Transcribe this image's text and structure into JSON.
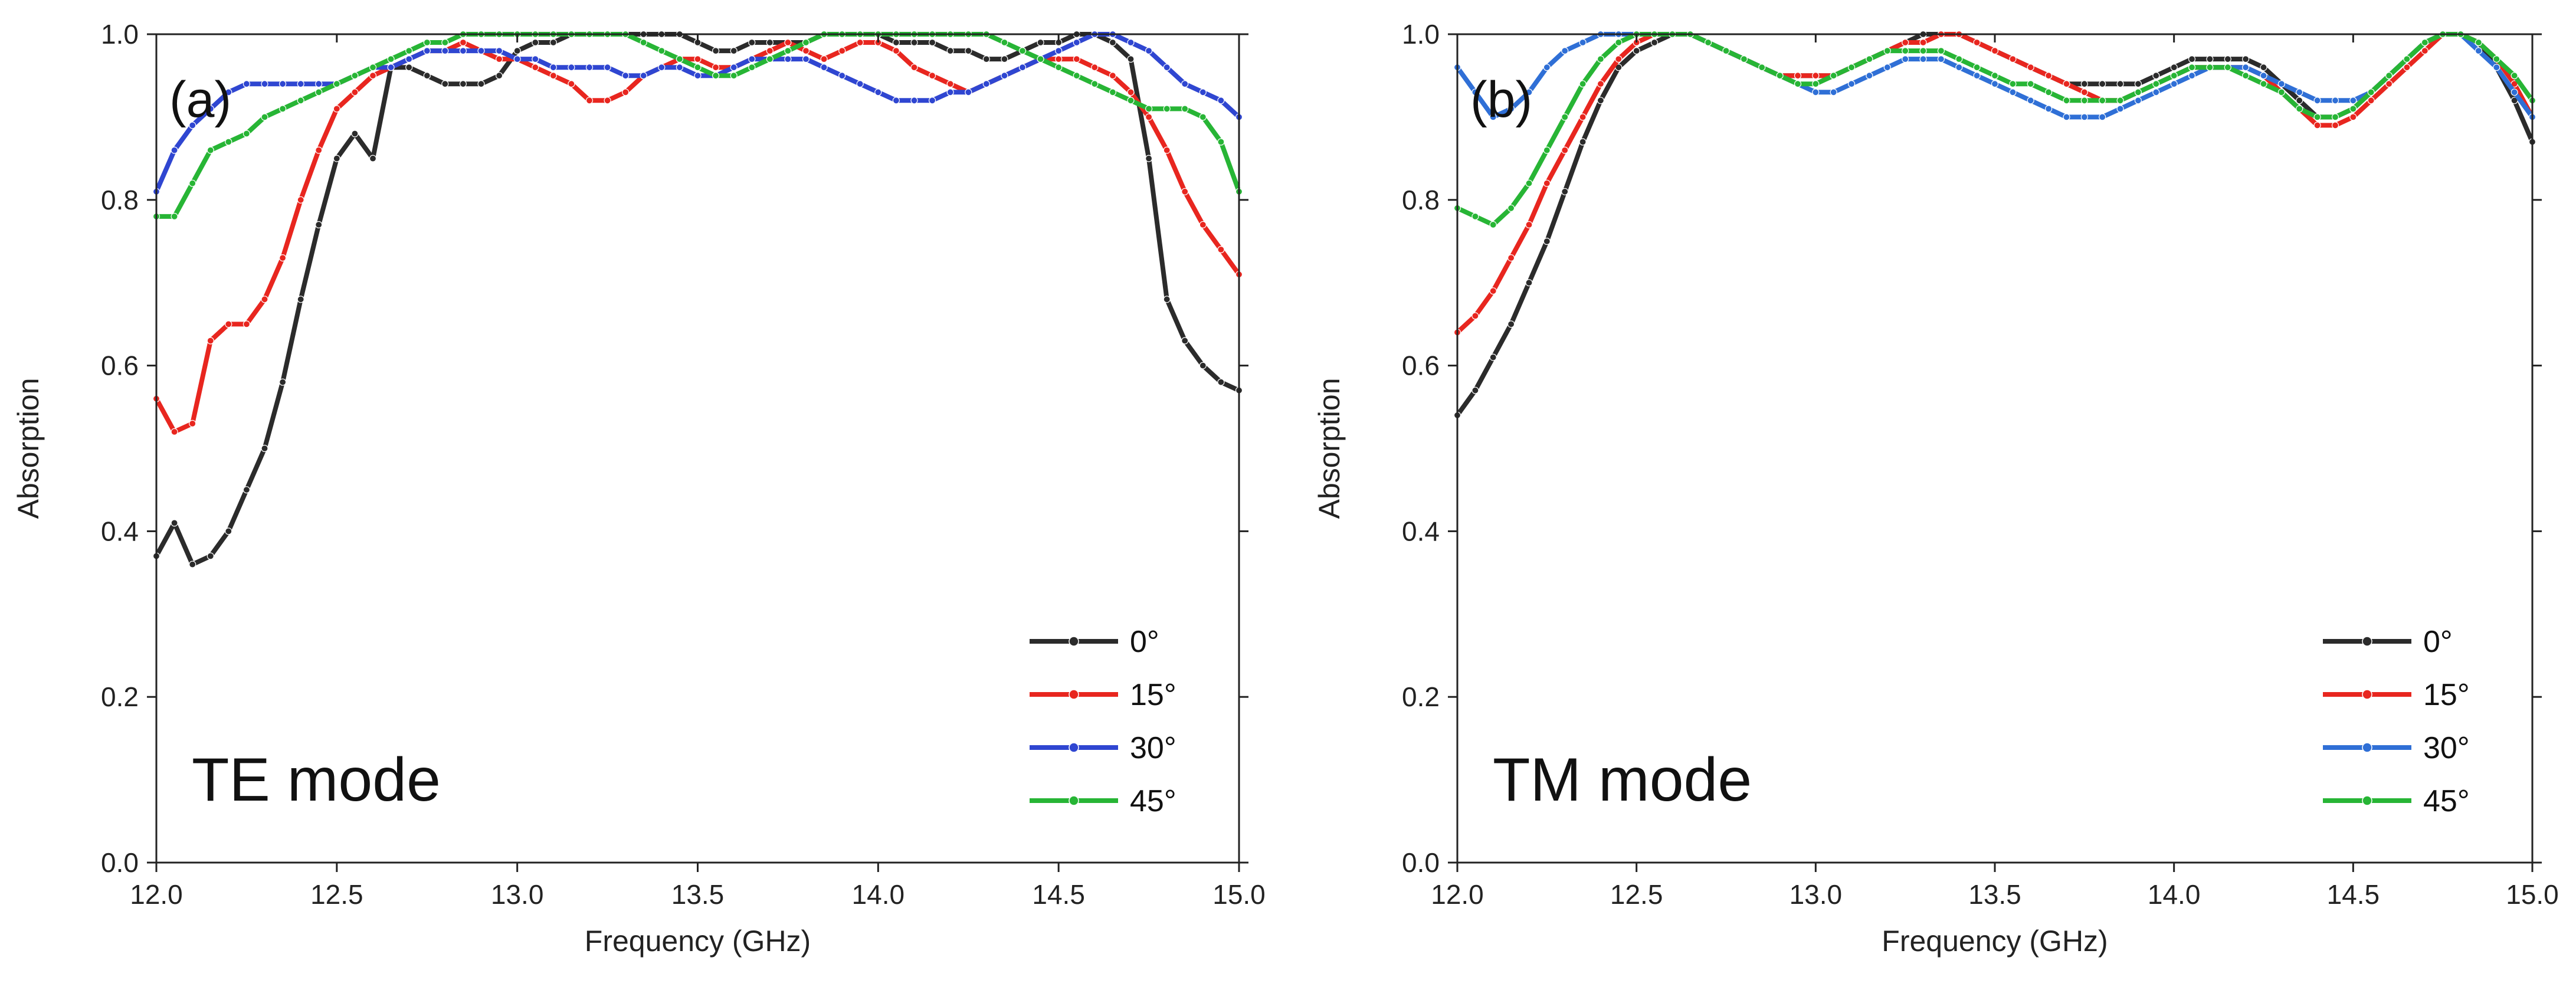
{
  "chart_data": [
    {
      "type": "line",
      "panel_label": "(a)",
      "annotation": "TE mode",
      "xlabel": "Frequency (GHz)",
      "ylabel": "Absorption",
      "xlim": [
        12.0,
        15.0
      ],
      "ylim": [
        0.0,
        1.0
      ],
      "xticks": [
        "12.0",
        "12.5",
        "13.0",
        "13.5",
        "14.0",
        "14.5",
        "15.0"
      ],
      "yticks": [
        "0.0",
        "0.2",
        "0.4",
        "0.6",
        "0.8",
        "1.0"
      ],
      "legend_position": "bottom-right",
      "x": [
        12.0,
        12.05,
        12.1,
        12.15,
        12.2,
        12.25,
        12.3,
        12.35,
        12.4,
        12.45,
        12.5,
        12.55,
        12.6,
        12.65,
        12.7,
        12.75,
        12.8,
        12.85,
        12.9,
        12.95,
        13.0,
        13.05,
        13.1,
        13.15,
        13.2,
        13.25,
        13.3,
        13.35,
        13.4,
        13.45,
        13.5,
        13.55,
        13.6,
        13.65,
        13.7,
        13.75,
        13.8,
        13.85,
        13.9,
        13.95,
        14.0,
        14.05,
        14.1,
        14.15,
        14.2,
        14.25,
        14.3,
        14.35,
        14.4,
        14.45,
        14.5,
        14.55,
        14.6,
        14.65,
        14.7,
        14.75,
        14.8,
        14.85,
        14.9,
        14.95,
        15.0
      ],
      "series": [
        {
          "name": "0°",
          "color": "#2b2b2b",
          "values": [
            0.37,
            0.41,
            0.36,
            0.37,
            0.4,
            0.45,
            0.5,
            0.58,
            0.68,
            0.77,
            0.85,
            0.88,
            0.85,
            0.96,
            0.96,
            0.95,
            0.94,
            0.94,
            0.94,
            0.95,
            0.98,
            0.99,
            0.99,
            1.0,
            1.0,
            1.0,
            1.0,
            1.0,
            1.0,
            1.0,
            0.99,
            0.98,
            0.98,
            0.99,
            0.99,
            0.99,
            0.99,
            1.0,
            1.0,
            1.0,
            1.0,
            0.99,
            0.99,
            0.99,
            0.98,
            0.98,
            0.97,
            0.97,
            0.98,
            0.99,
            0.99,
            1.0,
            1.0,
            0.99,
            0.97,
            0.85,
            0.68,
            0.63,
            0.6,
            0.58,
            0.57
          ]
        },
        {
          "name": "15°",
          "color": "#e8261f",
          "values": [
            0.56,
            0.52,
            0.53,
            0.63,
            0.65,
            0.65,
            0.68,
            0.73,
            0.8,
            0.86,
            0.91,
            0.93,
            0.95,
            0.96,
            0.97,
            0.98,
            0.98,
            0.99,
            0.98,
            0.97,
            0.97,
            0.96,
            0.95,
            0.94,
            0.92,
            0.92,
            0.93,
            0.95,
            0.96,
            0.97,
            0.97,
            0.96,
            0.96,
            0.97,
            0.98,
            0.99,
            0.98,
            0.97,
            0.98,
            0.99,
            0.99,
            0.98,
            0.96,
            0.95,
            0.94,
            0.93,
            0.94,
            0.95,
            0.96,
            0.97,
            0.97,
            0.97,
            0.96,
            0.95,
            0.93,
            0.9,
            0.86,
            0.81,
            0.77,
            0.74,
            0.71
          ]
        },
        {
          "name": "30°",
          "color": "#2f46d1",
          "values": [
            0.81,
            0.86,
            0.89,
            0.91,
            0.93,
            0.94,
            0.94,
            0.94,
            0.94,
            0.94,
            0.94,
            0.95,
            0.96,
            0.96,
            0.97,
            0.98,
            0.98,
            0.98,
            0.98,
            0.98,
            0.97,
            0.97,
            0.96,
            0.96,
            0.96,
            0.96,
            0.95,
            0.95,
            0.96,
            0.96,
            0.95,
            0.95,
            0.96,
            0.97,
            0.97,
            0.97,
            0.97,
            0.96,
            0.95,
            0.94,
            0.93,
            0.92,
            0.92,
            0.92,
            0.93,
            0.93,
            0.94,
            0.95,
            0.96,
            0.97,
            0.98,
            0.99,
            1.0,
            1.0,
            0.99,
            0.98,
            0.96,
            0.94,
            0.93,
            0.92,
            0.9
          ]
        },
        {
          "name": "45°",
          "color": "#27b535",
          "values": [
            0.78,
            0.78,
            0.82,
            0.86,
            0.87,
            0.88,
            0.9,
            0.91,
            0.92,
            0.93,
            0.94,
            0.95,
            0.96,
            0.97,
            0.98,
            0.99,
            0.99,
            1.0,
            1.0,
            1.0,
            1.0,
            1.0,
            1.0,
            1.0,
            1.0,
            1.0,
            1.0,
            0.99,
            0.98,
            0.97,
            0.96,
            0.95,
            0.95,
            0.96,
            0.97,
            0.98,
            0.99,
            1.0,
            1.0,
            1.0,
            1.0,
            1.0,
            1.0,
            1.0,
            1.0,
            1.0,
            1.0,
            0.99,
            0.98,
            0.97,
            0.96,
            0.95,
            0.94,
            0.93,
            0.92,
            0.91,
            0.91,
            0.91,
            0.9,
            0.87,
            0.81
          ]
        }
      ]
    },
    {
      "type": "line",
      "panel_label": "(b)",
      "annotation": "TM mode",
      "xlabel": "Frequency (GHz)",
      "ylabel": "Absorption",
      "xlim": [
        12.0,
        15.0
      ],
      "ylim": [
        0.0,
        1.0
      ],
      "xticks": [
        "12.0",
        "12.5",
        "13.0",
        "13.5",
        "14.0",
        "14.5",
        "15.0"
      ],
      "yticks": [
        "0.0",
        "0.2",
        "0.4",
        "0.6",
        "0.8",
        "1.0"
      ],
      "legend_position": "bottom-right",
      "x": [
        12.0,
        12.05,
        12.1,
        12.15,
        12.2,
        12.25,
        12.3,
        12.35,
        12.4,
        12.45,
        12.5,
        12.55,
        12.6,
        12.65,
        12.7,
        12.75,
        12.8,
        12.85,
        12.9,
        12.95,
        13.0,
        13.05,
        13.1,
        13.15,
        13.2,
        13.25,
        13.3,
        13.35,
        13.4,
        13.45,
        13.5,
        13.55,
        13.6,
        13.65,
        13.7,
        13.75,
        13.8,
        13.85,
        13.9,
        13.95,
        14.0,
        14.05,
        14.1,
        14.15,
        14.2,
        14.25,
        14.3,
        14.35,
        14.4,
        14.45,
        14.5,
        14.55,
        14.6,
        14.65,
        14.7,
        14.75,
        14.8,
        14.85,
        14.9,
        14.95,
        15.0
      ],
      "series": [
        {
          "name": "0°",
          "color": "#2b2b2b",
          "values": [
            0.54,
            0.57,
            0.61,
            0.65,
            0.7,
            0.75,
            0.81,
            0.87,
            0.92,
            0.96,
            0.98,
            0.99,
            1.0,
            1.0,
            0.99,
            0.98,
            0.97,
            0.96,
            0.95,
            0.95,
            0.95,
            0.95,
            0.96,
            0.97,
            0.98,
            0.99,
            1.0,
            1.0,
            1.0,
            0.99,
            0.98,
            0.97,
            0.96,
            0.95,
            0.94,
            0.94,
            0.94,
            0.94,
            0.94,
            0.95,
            0.96,
            0.97,
            0.97,
            0.97,
            0.97,
            0.96,
            0.94,
            0.92,
            0.9,
            0.9,
            0.91,
            0.93,
            0.95,
            0.97,
            0.99,
            1.0,
            1.0,
            0.99,
            0.96,
            0.92,
            0.87
          ]
        },
        {
          "name": "15°",
          "color": "#e8261f",
          "values": [
            0.64,
            0.66,
            0.69,
            0.73,
            0.77,
            0.82,
            0.86,
            0.9,
            0.94,
            0.97,
            0.99,
            1.0,
            1.0,
            1.0,
            0.99,
            0.98,
            0.97,
            0.96,
            0.95,
            0.95,
            0.95,
            0.95,
            0.96,
            0.97,
            0.98,
            0.99,
            0.99,
            1.0,
            1.0,
            0.99,
            0.98,
            0.97,
            0.96,
            0.95,
            0.94,
            0.93,
            0.92,
            0.92,
            0.93,
            0.94,
            0.95,
            0.96,
            0.96,
            0.96,
            0.96,
            0.95,
            0.93,
            0.91,
            0.89,
            0.89,
            0.9,
            0.92,
            0.94,
            0.96,
            0.98,
            1.0,
            1.0,
            0.99,
            0.97,
            0.94,
            0.9
          ]
        },
        {
          "name": "30°",
          "color": "#2f6fd6",
          "values": [
            0.96,
            0.93,
            0.9,
            0.91,
            0.93,
            0.96,
            0.98,
            0.99,
            1.0,
            1.0,
            1.0,
            1.0,
            1.0,
            1.0,
            0.99,
            0.98,
            0.97,
            0.96,
            0.95,
            0.94,
            0.93,
            0.93,
            0.94,
            0.95,
            0.96,
            0.97,
            0.97,
            0.97,
            0.96,
            0.95,
            0.94,
            0.93,
            0.92,
            0.91,
            0.9,
            0.9,
            0.9,
            0.91,
            0.92,
            0.93,
            0.94,
            0.95,
            0.96,
            0.96,
            0.96,
            0.95,
            0.94,
            0.93,
            0.92,
            0.92,
            0.92,
            0.93,
            0.95,
            0.97,
            0.99,
            1.0,
            1.0,
            0.98,
            0.96,
            0.93,
            0.9
          ]
        },
        {
          "name": "45°",
          "color": "#27b535",
          "values": [
            0.79,
            0.78,
            0.77,
            0.79,
            0.82,
            0.86,
            0.9,
            0.94,
            0.97,
            0.99,
            1.0,
            1.0,
            1.0,
            1.0,
            0.99,
            0.98,
            0.97,
            0.96,
            0.95,
            0.94,
            0.94,
            0.95,
            0.96,
            0.97,
            0.98,
            0.98,
            0.98,
            0.98,
            0.97,
            0.96,
            0.95,
            0.94,
            0.94,
            0.93,
            0.92,
            0.92,
            0.92,
            0.92,
            0.93,
            0.94,
            0.95,
            0.96,
            0.96,
            0.96,
            0.95,
            0.94,
            0.93,
            0.91,
            0.9,
            0.9,
            0.91,
            0.93,
            0.95,
            0.97,
            0.99,
            1.0,
            1.0,
            0.99,
            0.97,
            0.95,
            0.92
          ]
        }
      ]
    }
  ]
}
